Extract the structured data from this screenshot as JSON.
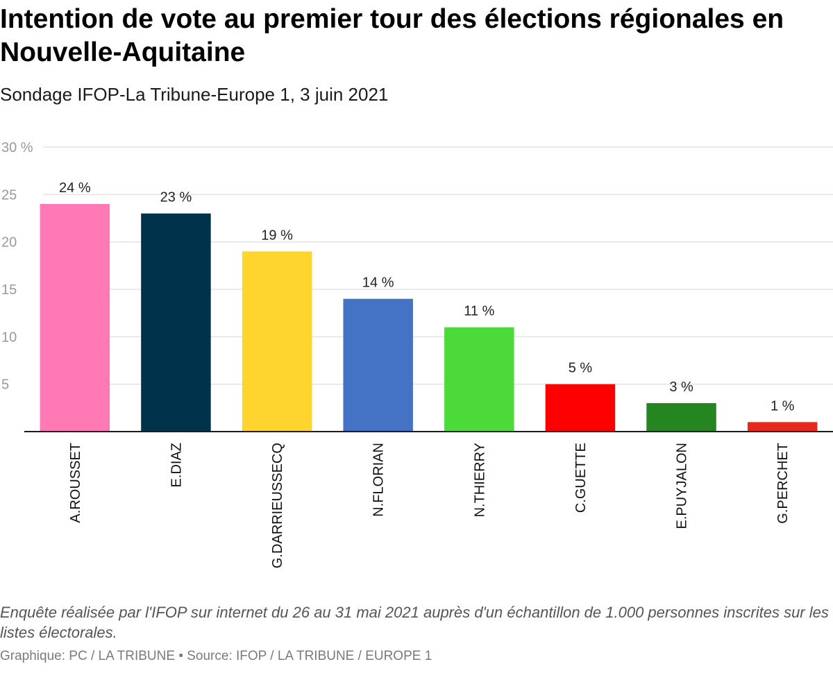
{
  "header": {
    "title": "Intention de vote au premier tour des élections régionales en Nouvelle-Aquitaine",
    "subtitle": "Sondage IFOP-La Tribune-Europe 1, 3 juin 2021"
  },
  "footer": {
    "note": "Enquête réalisée par l'IFOP sur internet du 26 au 31 mai 2021 auprès d'un échantillon de 1.000 personnes inscrites sur les listes électorales.",
    "credits": "Graphique: PC / LA TRIBUNE • Source: IFOP / LA TRIBUNE / EUROPE 1"
  },
  "chart_data": {
    "type": "bar",
    "title": "Intention de vote au premier tour des élections régionales en Nouvelle-Aquitaine",
    "subtitle": "Sondage IFOP-La Tribune-Europe 1, 3 juin 2021",
    "xlabel": "",
    "ylabel": "",
    "ylim": [
      0,
      30
    ],
    "yticks": [
      0,
      5,
      10,
      15,
      20,
      25,
      30
    ],
    "ytick_labels": [
      "",
      "5",
      "10",
      "15",
      "20",
      "25",
      "30 %"
    ],
    "grid": true,
    "legend": "none",
    "categories": [
      "A.ROUSSET",
      "E.DIAZ",
      "G.DARRIEUSSECQ",
      "N.FLORIAN",
      "N.THIERRY",
      "C.GUETTE",
      "E.PUYJALON",
      "G.PERCHET"
    ],
    "values": [
      24,
      23,
      19,
      14,
      11,
      5,
      3,
      1
    ],
    "value_labels": [
      "24 %",
      "23 %",
      "19 %",
      "14 %",
      "11 %",
      "5 %",
      "3 %",
      "1 %"
    ],
    "colors": [
      "#ff7ab5",
      "#01324b",
      "#fed52e",
      "#4472c4",
      "#4cd93a",
      "#ff0000",
      "#258521",
      "#e8281a"
    ]
  }
}
